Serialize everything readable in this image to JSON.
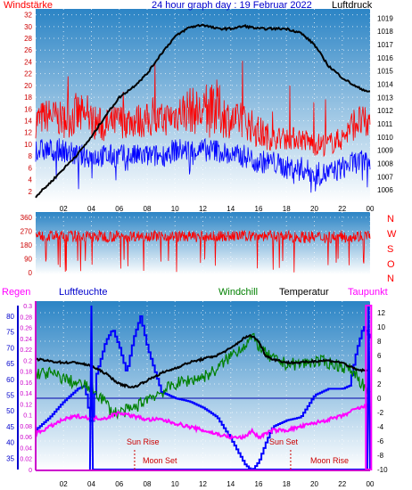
{
  "header": {
    "left_label": "Windstärke",
    "title": "24 hour graph day : 19 Februar 2022",
    "right_label": "Luftdruck"
  },
  "bottom_header": {
    "regen": "Regen",
    "luftfeuchte": "Luftfeuchte",
    "windchill": "Windchill",
    "temperatur": "Temperatur",
    "taupunkt": "Taupunkt"
  },
  "compass": [
    "N",
    "W",
    "S",
    "O",
    "N"
  ],
  "annotations": {
    "sun_rise": "Sun Rise",
    "sun_set": "Sun Set",
    "moon_set": "Moon Set",
    "moon_rise": "Moon Rise"
  },
  "colors": {
    "wind_speed": "#ff0000",
    "wind_gust_low": "#0000ff",
    "pressure": "#000000",
    "humidity": "#0000ff",
    "windchill": "#008000",
    "temperature": "#000000",
    "dewpoint": "#ff00ff",
    "plot_top": "#2a83c4",
    "plot_bottom": "#ffffff"
  },
  "chart_data": [
    {
      "type": "line",
      "ylabel": "Windstärke",
      "y2label": "Luftdruck",
      "x_ticks": [
        "02",
        "04",
        "06",
        "08",
        "10",
        "12",
        "14",
        "16",
        "18",
        "20",
        "22",
        "00"
      ],
      "y_ticks": [
        "2",
        "4",
        "6",
        "8",
        "10",
        "12",
        "14",
        "16",
        "18",
        "20",
        "22",
        "24",
        "26",
        "28",
        "30",
        "32"
      ],
      "y2_ticks": [
        "1006",
        "1007",
        "1008",
        "1009",
        "1010",
        "1011",
        "1012",
        "1013",
        "1014",
        "1015",
        "1016",
        "1017",
        "1018",
        "1019"
      ],
      "ylim": [
        0,
        33
      ],
      "y2lim": [
        1005,
        1019.7
      ],
      "series": [
        {
          "type": "noise",
          "x": [
            0,
            1,
            2,
            3,
            4,
            5,
            6,
            7,
            8,
            9,
            10,
            11,
            12,
            13,
            14,
            15,
            16,
            17,
            18,
            19,
            20,
            21,
            22,
            23,
            24
          ],
          "center": [
            14,
            15,
            14,
            15,
            14,
            13,
            14,
            14,
            14,
            14,
            15,
            16,
            15,
            16,
            14,
            14,
            12,
            11,
            11,
            11,
            10,
            10,
            11,
            14,
            13
          ],
          "spread": [
            3,
            3,
            3,
            4,
            3,
            3,
            3,
            3,
            3,
            3,
            3,
            4,
            4,
            5,
            3,
            3,
            3,
            2,
            2,
            2,
            2,
            2,
            2,
            3,
            3
          ]
        },
        {
          "type": "noise",
          "x": [
            0,
            1,
            2,
            3,
            4,
            5,
            6,
            7,
            8,
            9,
            10,
            11,
            12,
            13,
            14,
            15,
            16,
            17,
            18,
            19,
            20,
            21,
            22,
            23,
            24
          ],
          "center": [
            9,
            9,
            9,
            8,
            8,
            8,
            8,
            8,
            8,
            8,
            9,
            9,
            9,
            9,
            8,
            8,
            7,
            7,
            6,
            6,
            5,
            5,
            6,
            7,
            7
          ],
          "spread": [
            2,
            2,
            2,
            2,
            2,
            2,
            2,
            2,
            2,
            2,
            2,
            2,
            2,
            2,
            2,
            2,
            2,
            2,
            2,
            2,
            2,
            2,
            2,
            2,
            2
          ]
        },
        {
          "x": [
            0,
            1,
            2,
            3,
            4,
            5,
            6,
            7,
            8,
            9,
            10,
            11,
            12,
            13,
            14,
            15,
            16,
            17,
            18,
            19,
            20,
            21,
            22,
            23,
            24
          ],
          "values": [
            1005.5,
            1006.5,
            1007.6,
            1008.7,
            1010.0,
            1011.6,
            1013.0,
            1013.8,
            1014.8,
            1016.3,
            1017.6,
            1018.3,
            1018.5,
            1018.2,
            1018.2,
            1018.4,
            1018.2,
            1018.2,
            1018.2,
            1017.9,
            1017.0,
            1015.4,
            1014.5,
            1013.8,
            1013.4
          ]
        }
      ]
    },
    {
      "type": "line",
      "y_ticks": [
        "0",
        "90",
        "180",
        "270",
        "360"
      ],
      "ylim": [
        0,
        360
      ],
      "series": [
        {
          "type": "noise",
          "x": [
            0,
            4,
            8,
            12,
            16,
            20,
            24
          ],
          "center": [
            240,
            235,
            240,
            235,
            240,
            230,
            240
          ],
          "spread": [
            35,
            40,
            35,
            35,
            35,
            40,
            40
          ]
        }
      ]
    },
    {
      "type": "line",
      "ylabel": "Regen / Luftfeuchte",
      "y2label": "Temperatur / Taupunkt",
      "y_ticks_regen": [
        "0",
        "0.02",
        "0.04",
        "0.06",
        "0.08",
        "0.1",
        "0.12",
        "0.14",
        "0.16",
        "0.18",
        "0.2",
        "0.22",
        "0.24",
        "0.26",
        "0.28",
        "0.3"
      ],
      "y_ticks_humidity": [
        "35",
        "40",
        "45",
        "50",
        "55",
        "60",
        "65",
        "70",
        "75",
        "80"
      ],
      "y2_ticks": [
        "-10",
        "-8",
        "-6",
        "-4",
        "-2",
        "0",
        "2",
        "4",
        "6",
        "8",
        "10",
        "12"
      ],
      "ylim_humidity": [
        31.4,
        83.4
      ],
      "y2lim": [
        -10,
        13
      ],
      "series": [
        {
          "x": [
            0,
            1,
            2,
            3,
            3.5,
            4,
            4.3,
            5,
            5.5,
            6,
            6.5,
            7,
            7.5,
            8,
            9,
            10,
            11,
            12,
            13,
            14,
            15,
            15.5,
            16,
            16.5,
            17,
            18,
            19,
            20,
            21,
            22,
            22.5,
            23,
            23.5,
            24
          ],
          "values": [
            44,
            48,
            53,
            57,
            58,
            44,
            61,
            72,
            76,
            70,
            62,
            73,
            80,
            70,
            56,
            54,
            53,
            51,
            48,
            41,
            33,
            31,
            34,
            40,
            45,
            47,
            48,
            55,
            57,
            57,
            58,
            69,
            77,
            73
          ]
        },
        {
          "x": [
            0,
            1,
            2,
            3,
            4,
            5,
            5.5,
            6,
            7,
            8,
            9,
            10,
            11,
            12,
            13,
            14,
            15,
            15.5,
            16,
            16.5,
            17,
            18,
            19,
            20,
            21,
            22,
            23,
            24
          ],
          "values": [
            3.5,
            3.5,
            2.8,
            2.0,
            1.5,
            -0.5,
            -2.0,
            -2.0,
            -1.5,
            0,
            0.8,
            2.0,
            2.5,
            3.0,
            4.0,
            6.0,
            7.5,
            8.5,
            7.5,
            6.2,
            5.5,
            4.8,
            4.8,
            5.2,
            5.0,
            4.5,
            3.5,
            0.0
          ]
        },
        {
          "x": [
            0,
            1,
            2,
            3,
            4,
            5,
            6,
            7,
            8,
            9,
            10,
            11,
            12,
            13,
            14,
            15,
            15.5,
            16,
            16.5,
            17,
            18,
            19,
            20,
            21,
            22,
            23,
            24
          ],
          "values": [
            5.5,
            5.2,
            5.0,
            5.0,
            4.5,
            3.5,
            2.0,
            1.5,
            2.5,
            3.5,
            4.2,
            5.0,
            5.5,
            6.0,
            7.0,
            8.5,
            8.8,
            8.0,
            6.0,
            5.5,
            5.0,
            5.0,
            5.2,
            5.3,
            5.0,
            4.0,
            3.8
          ]
        },
        {
          "x": [
            0,
            1,
            2,
            3,
            4,
            5,
            6,
            7,
            8,
            9,
            10,
            11,
            12,
            13,
            14,
            15,
            15.5,
            16,
            17,
            18,
            19,
            20,
            21,
            22,
            23,
            24
          ],
          "values": [
            -5.0,
            -4.0,
            -3.0,
            -2.5,
            -2.8,
            -2.8,
            -2.0,
            -2.5,
            -3.0,
            -3.0,
            -3.5,
            -4.0,
            -4.5,
            -5.0,
            -5.5,
            -5.5,
            -4.5,
            -5.5,
            -4.5,
            -4.5,
            -4.0,
            -3.5,
            -3.0,
            -2.5,
            -1.5,
            -1.0
          ]
        },
        {
          "x": [
            3.9,
            4.0,
            4.1,
            23.8,
            23.9,
            24.0
          ],
          "values": [
            0,
            0.3,
            0,
            0,
            0.3,
            0
          ]
        }
      ]
    }
  ]
}
